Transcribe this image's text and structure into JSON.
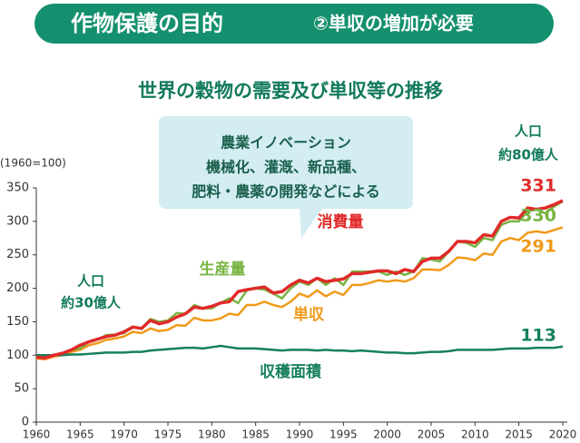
{
  "header": {
    "title": "作物保護の目的",
    "subtitle": "②単収の増加が必要"
  },
  "chart_data": {
    "type": "line",
    "title": "世界の穀物の需要及び単収等の推移",
    "ylabel": "(1960=100)",
    "x": [
      1960,
      1961,
      1962,
      1963,
      1964,
      1965,
      1966,
      1967,
      1968,
      1969,
      1970,
      1971,
      1972,
      1973,
      1974,
      1975,
      1976,
      1977,
      1978,
      1979,
      1980,
      1981,
      1982,
      1983,
      1984,
      1985,
      1986,
      1987,
      1988,
      1989,
      1990,
      1991,
      1992,
      1993,
      1994,
      1995,
      1996,
      1997,
      1998,
      1999,
      2000,
      2001,
      2002,
      2003,
      2004,
      2005,
      2006,
      2007,
      2008,
      2009,
      2010,
      2011,
      2012,
      2013,
      2014,
      2015,
      2016,
      2017,
      2018,
      2019,
      2020
    ],
    "xlim": [
      1960,
      2020
    ],
    "xticks": [
      1960,
      1965,
      1970,
      1975,
      1980,
      1985,
      1990,
      1995,
      2000,
      2005,
      2010,
      2015,
      2020
    ],
    "ylim": [
      0,
      350
    ],
    "yticks": [
      0,
      50,
      100,
      150,
      200,
      250,
      300,
      350
    ],
    "grid": false,
    "series": [
      {
        "name": "消費量",
        "color": "#e02a2a",
        "values": [
          97,
          96,
          100,
          103,
          108,
          115,
          120,
          124,
          128,
          130,
          135,
          142,
          140,
          152,
          147,
          150,
          157,
          162,
          172,
          170,
          173,
          178,
          180,
          195,
          198,
          200,
          202,
          193,
          195,
          205,
          212,
          208,
          215,
          210,
          212,
          214,
          222,
          222,
          224,
          226,
          226,
          222,
          228,
          225,
          240,
          245,
          245,
          255,
          270,
          270,
          268,
          280,
          278,
          300,
          306,
          305,
          320,
          318,
          320,
          325,
          331
        ]
      },
      {
        "name": "生産量",
        "color": "#78b443",
        "values": [
          100,
          96,
          101,
          102,
          108,
          110,
          120,
          124,
          130,
          131,
          133,
          143,
          140,
          154,
          150,
          152,
          163,
          162,
          175,
          170,
          170,
          178,
          185,
          178,
          197,
          200,
          198,
          192,
          185,
          200,
          210,
          205,
          215,
          205,
          215,
          205,
          225,
          225,
          225,
          225,
          220,
          225,
          220,
          225,
          245,
          243,
          240,
          255,
          270,
          268,
          262,
          275,
          272,
          295,
          300,
          300,
          315,
          318,
          312,
          322,
          330
        ]
      },
      {
        "name": "単収",
        "color": "#f09a1a",
        "values": [
          95,
          94,
          98,
          100,
          105,
          108,
          115,
          118,
          123,
          125,
          128,
          135,
          133,
          140,
          136,
          138,
          145,
          144,
          156,
          152,
          152,
          155,
          162,
          160,
          175,
          175,
          180,
          175,
          172,
          180,
          192,
          187,
          197,
          188,
          195,
          190,
          205,
          205,
          208,
          212,
          210,
          212,
          210,
          215,
          228,
          228,
          227,
          235,
          246,
          245,
          242,
          252,
          250,
          270,
          275,
          272,
          283,
          285,
          283,
          287,
          291
        ]
      },
      {
        "name": "収穫面積",
        "color": "#16805e",
        "values": [
          100,
          100,
          100,
          100,
          101,
          101,
          102,
          103,
          104,
          104,
          104,
          105,
          105,
          107,
          108,
          109,
          110,
          111,
          111,
          110,
          112,
          114,
          112,
          110,
          110,
          110,
          109,
          108,
          107,
          108,
          108,
          108,
          107,
          108,
          107,
          107,
          106,
          107,
          106,
          105,
          104,
          104,
          103,
          103,
          104,
          105,
          105,
          106,
          108,
          108,
          108,
          108,
          108,
          109,
          110,
          110,
          110,
          111,
          111,
          111,
          113
        ]
      }
    ],
    "annotations": [
      {
        "lines": [
          "人口",
          "約30億人"
        ]
      },
      {
        "lines": [
          "人口",
          "約80億人"
        ]
      },
      {
        "lines": [
          "農業イノベーション",
          "機械化、灌漑、新品種、",
          "肥料・農薬の開発などによる"
        ]
      }
    ]
  }
}
